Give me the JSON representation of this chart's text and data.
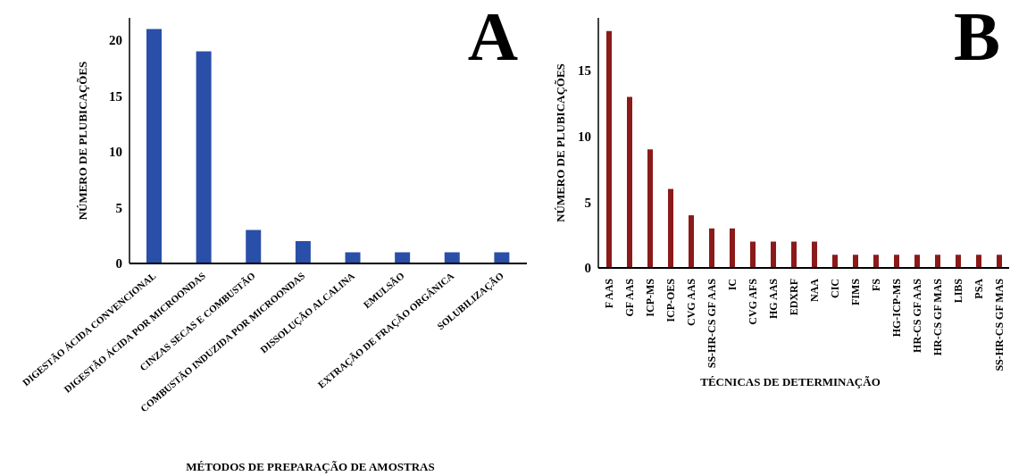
{
  "chart_data": [
    {
      "type": "bar",
      "title": "A",
      "xlabel": "MÉTODOS DE PREPARAÇÃO DE AMOSTRAS",
      "ylabel": "NÚMERO DE PLUBICAÇÕES",
      "categories": [
        "DIGESTÃO ÁCIDA CONVENCIONAL",
        "DIGESTÃO ÁCIDA POR MICROONDAS",
        "CINZAS SECAS E COMBUSTÃO",
        "COMBUSTÃO INDUZIDA POR MICROONDAS",
        "DISSOLUÇÃO ALCALINA",
        "EMULSÃO",
        "EXTRAÇÃO DE FRAÇÃO ORGÂNICA",
        "SOLUBILIZAÇÃO"
      ],
      "values": [
        21,
        19,
        3,
        2,
        1,
        1,
        1,
        1
      ],
      "color": "#2a4fa8",
      "ylim": [
        0,
        22
      ],
      "yticks": [
        0,
        5,
        10,
        15,
        20
      ],
      "grid": false,
      "legend": false
    },
    {
      "type": "bar",
      "title": "B",
      "xlabel": "TÉCNICAS DE DETERMINAÇÃO",
      "ylabel": "NÚMERO DE PLUBICAÇÕES",
      "categories": [
        "F AAS",
        "GF AAS",
        "ICP-MS",
        "ICP-OES",
        "CVG AAS",
        "SS-HR-CS GF AAS",
        "IC",
        "CVG AFS",
        "HG AAS",
        "EDXRF",
        "NAA",
        "CIC",
        "FIMS",
        "FS",
        "HG-ICP-MS",
        "HR-CS GF AAS",
        "HR-CS GF MAS",
        "LIBS",
        "PSA",
        "SS-HR-CS GF MAS"
      ],
      "values": [
        18,
        13,
        9,
        6,
        4,
        3,
        3,
        2,
        2,
        2,
        2,
        1,
        1,
        1,
        1,
        1,
        1,
        1,
        1,
        1
      ],
      "color": "#8b1a1a",
      "ylim": [
        0,
        19
      ],
      "yticks": [
        0,
        5,
        10,
        15
      ],
      "grid": false,
      "legend": false
    }
  ]
}
